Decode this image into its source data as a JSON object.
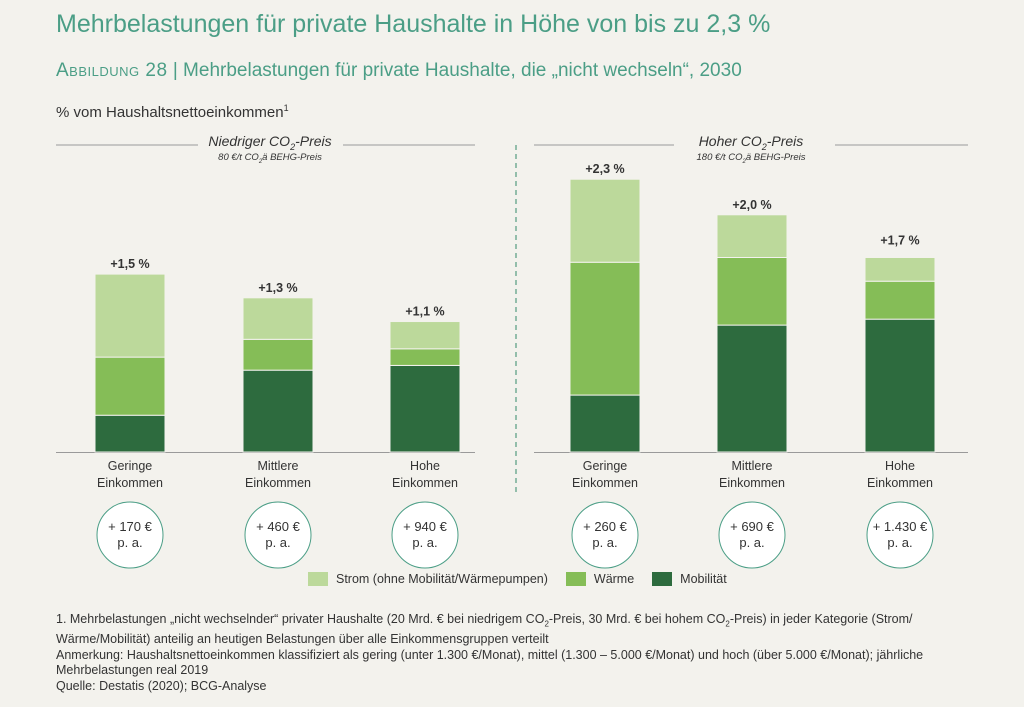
{
  "title": "Mehrbelastungen für private Haushalte in Höhe von bis zu 2,3 %",
  "subtitle_lead": "Abbildung 28",
  "subtitle_separator": " | ",
  "subtitle_rest": "Mehrbelastungen für private Haushalte, die „nicht wechseln“, 2030",
  "unit_label": "% vom Haushaltsnettoeinkommen",
  "unit_label_sup": "1",
  "colors": {
    "strom": "#bcd99b",
    "waerme": "#85bd57",
    "mobilitaet": "#2d6b3e",
    "accent": "#4b9e86",
    "divider": "#6aa88f"
  },
  "legend": [
    {
      "key": "strom",
      "label": "Strom (ohne Mobilität/Wärmepumpen)"
    },
    {
      "key": "waerme",
      "label": "Wärme"
    },
    {
      "key": "mobilitaet",
      "label": "Mobilität"
    }
  ],
  "chart_data": {
    "type": "bar",
    "stacked": true,
    "ylabel": "% vom Haushaltsnettoeinkommen",
    "ylim": [
      0,
      2.5
    ],
    "grid": false,
    "legend_position": "bottom",
    "series_order": [
      "Mobilität",
      "Wärme",
      "Strom (ohne Mobilität/Wärmepumpen)"
    ],
    "panels": [
      {
        "title_pre": "Niedriger CO",
        "title_sub": "2",
        "title_post": "-Preis",
        "note_pre": "80 €/t CO",
        "note_sub": "2",
        "note_post": "ä BEHG-Preis",
        "categories": [
          "Geringe Einkommen",
          "Mittlere Einkommen",
          "Hohe Einkommen"
        ],
        "category_lines": [
          [
            "Geringe",
            "Einkommen"
          ],
          [
            "Mittlere",
            "Einkommen"
          ],
          [
            "Hohe",
            "Einkommen"
          ]
        ],
        "series": [
          {
            "name": "Mobilität",
            "values": [
              0.31,
              0.69,
              0.73
            ]
          },
          {
            "name": "Wärme",
            "values": [
              0.49,
              0.26,
              0.14
            ]
          },
          {
            "name": "Strom (ohne Mobilität/Wärmepumpen)",
            "values": [
              0.7,
              0.35,
              0.23
            ]
          }
        ],
        "totals": [
          1.5,
          1.3,
          1.1
        ],
        "total_labels": [
          "+1,5 %",
          "+1,3 %",
          "+1,1 %"
        ],
        "annual": [
          [
            "+ 170 €",
            "p. a."
          ],
          [
            "+ 460 €",
            "p. a."
          ],
          [
            "+ 940 €",
            "p. a."
          ]
        ]
      },
      {
        "title_pre": "Hoher CO",
        "title_sub": "2",
        "title_post": "-Preis",
        "note_pre": "180 €/t CO",
        "note_sub": "2",
        "note_post": "ä BEHG-Preis",
        "categories": [
          "Geringe Einkommen",
          "Mittlere Einkommen",
          "Hohe Einkommen"
        ],
        "category_lines": [
          [
            "Geringe",
            "Einkommen"
          ],
          [
            "Mittlere",
            "Einkommen"
          ],
          [
            "Hohe",
            "Einkommen"
          ]
        ],
        "series": [
          {
            "name": "Mobilität",
            "values": [
              0.48,
              1.07,
              1.12
            ]
          },
          {
            "name": "Wärme",
            "values": [
              1.12,
              0.57,
              0.32
            ]
          },
          {
            "name": "Strom (ohne Mobilität/Wärmepumpen)",
            "values": [
              0.7,
              0.36,
              0.2
            ]
          }
        ],
        "totals": [
          2.3,
          2.0,
          1.7
        ],
        "total_labels": [
          "+2,3 %",
          "+2,0 %",
          "+1,7 %"
        ],
        "annual": [
          [
            "+ 260 €",
            "p. a."
          ],
          [
            "+ 690 €",
            "p. a."
          ],
          [
            "+ 1.430 €",
            "p. a."
          ]
        ]
      }
    ]
  },
  "footnotes": [
    {
      "pre": "1. Mehrbelastungen „nicht wechselnder“ privater Haushalte (20 Mrd. € bei niedrigem CO",
      "sub1": "2",
      "mid": "-Preis, 30 Mrd. € bei hohem CO",
      "sub2": "2",
      "post": "-Preis) in jeder Kategorie (Strom/ Wärme/Mobilität) anteilig an heutigen Belastungen über alle Einkommensgruppen verteilt"
    },
    {
      "text": "Anmerkung: Haushaltsnettoeinkommen klassifiziert als gering (unter 1.300 €/Monat), mittel (1.300 – 5.000 €/Monat) und hoch (über 5.000 €/Monat); jährliche Mehrbelastungen real 2019"
    },
    {
      "text": "Quelle: Destatis (2020); BCG-Analyse"
    }
  ]
}
